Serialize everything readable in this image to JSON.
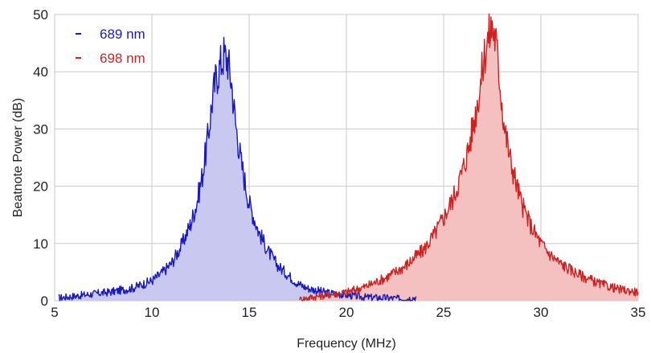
{
  "chart_data": {
    "type": "area",
    "xlabel": "Frequency (MHz)",
    "ylabel": "Beatnote Power (dB)",
    "xlim": [
      5,
      35
    ],
    "ylim": [
      0,
      50
    ],
    "x_ticks": [
      5,
      10,
      15,
      20,
      25,
      30,
      35
    ],
    "y_ticks": [
      0,
      10,
      20,
      30,
      40,
      50
    ],
    "grid": true,
    "legend_position": "top-left",
    "series": [
      {
        "name": "689 nm",
        "color": "#1a1ab8",
        "fill": "#c8c8f0",
        "x": [
          5.2,
          6,
          7,
          8,
          9,
          10,
          10.5,
          11,
          11.5,
          12,
          12.3,
          12.6,
          12.9,
          13.1,
          13.3,
          13.5,
          13.7,
          13.9,
          14.1,
          14.3,
          14.6,
          15,
          15.5,
          16,
          16.5,
          17,
          17.5,
          18,
          19,
          20,
          21,
          22,
          23,
          23.6
        ],
        "y": [
          0.5,
          0.8,
          1.2,
          1.6,
          2.2,
          3.5,
          4.8,
          6.5,
          9.5,
          13.5,
          17,
          22,
          29,
          35,
          39,
          41,
          43,
          42,
          38,
          31,
          24,
          17,
          12,
          8.5,
          6,
          4.5,
          3,
          2.2,
          1.4,
          1,
          0.6,
          0.5,
          0.3,
          0.6
        ]
      },
      {
        "name": "698 nm",
        "color": "#cc2222",
        "fill": "#f4c0c0",
        "x": [
          17.6,
          18,
          19,
          20,
          21,
          22,
          23,
          24,
          24.5,
          25,
          25.5,
          26,
          26.3,
          26.6,
          26.9,
          27.1,
          27.3,
          27.5,
          27.7,
          27.9,
          28.1,
          28.4,
          28.7,
          29,
          29.5,
          30,
          30.5,
          31,
          32,
          33,
          34,
          35
        ],
        "y": [
          0.2,
          0.5,
          1,
          1.5,
          2.5,
          4,
          6,
          9,
          11.5,
          14.5,
          18,
          23,
          27,
          32,
          38,
          43,
          46,
          48,
          45,
          38,
          31,
          25,
          21,
          17,
          13,
          10,
          8,
          6.5,
          4.5,
          3,
          2,
          1.5
        ]
      }
    ]
  }
}
